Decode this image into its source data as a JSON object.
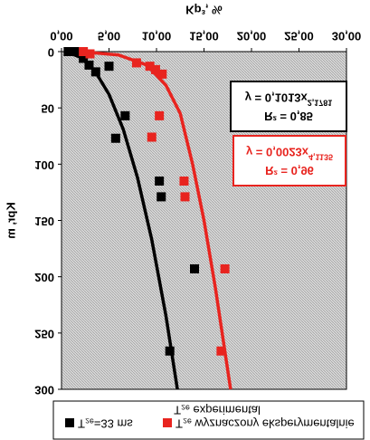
{
  "chart_data": {
    "type": "scatter",
    "x_label": "Kp³, %",
    "y_label": "Kpr, m",
    "xlim": [
      0,
      30
    ],
    "ylim": [
      0,
      300
    ],
    "xticks": [
      {
        "value": 0,
        "label": "0,00"
      },
      {
        "value": 5,
        "label": "5,00"
      },
      {
        "value": 10,
        "label": "10,00"
      },
      {
        "value": 15,
        "label": "15,00"
      },
      {
        "value": 20,
        "label": "20,00"
      },
      {
        "value": 25,
        "label": "25,00"
      },
      {
        "value": 30,
        "label": "30,00"
      }
    ],
    "yticks": [
      0,
      50,
      100,
      150,
      200,
      250,
      300
    ],
    "series": [
      {
        "name": "T₂ₑ=33 ms",
        "color": "#000000",
        "x": [
          0.7,
          1.4,
          2.3,
          2.9,
          3.6,
          5,
          6.7,
          5.7,
          10.3,
          10.5,
          14,
          11.4
        ],
        "values": [
          0,
          0,
          6,
          12,
          18,
          13,
          57,
          77,
          115,
          129,
          193,
          266
        ],
        "fit_x": [
          0.5,
          2,
          3.5,
          5,
          6.5,
          8,
          9.5,
          11,
          12.2
        ],
        "fit_values": [
          0.2,
          5,
          17,
          38,
          69,
          112,
          167,
          235,
          300
        ],
        "r2": "R² = 0,85",
        "equation": "y = 0,1013x",
        "exponent": "2,1781"
      },
      {
        "name": "T₂ₑ wyznaczony eksperymentalnie",
        "color": "#e8241f",
        "x": [
          2.3,
          3,
          7.9,
          9.3,
          9.9,
          10.6,
          10.3,
          9.5,
          12.9,
          13,
          17.2,
          16.8
        ],
        "values": [
          0,
          2,
          10,
          13,
          16,
          20,
          57,
          76,
          115,
          129,
          193,
          266
        ],
        "fit_x": [
          2,
          6,
          9,
          11,
          12.5,
          13.8,
          15,
          16.2,
          17.8
        ],
        "fit_values": [
          0,
          3,
          12,
          30,
          55,
          100,
          150,
          210,
          300
        ],
        "r2": "R² = 0,96",
        "equation": "y = 0,0023x",
        "exponent": "4,1135"
      }
    ],
    "legend_note": "T₂ₑ experimental"
  }
}
